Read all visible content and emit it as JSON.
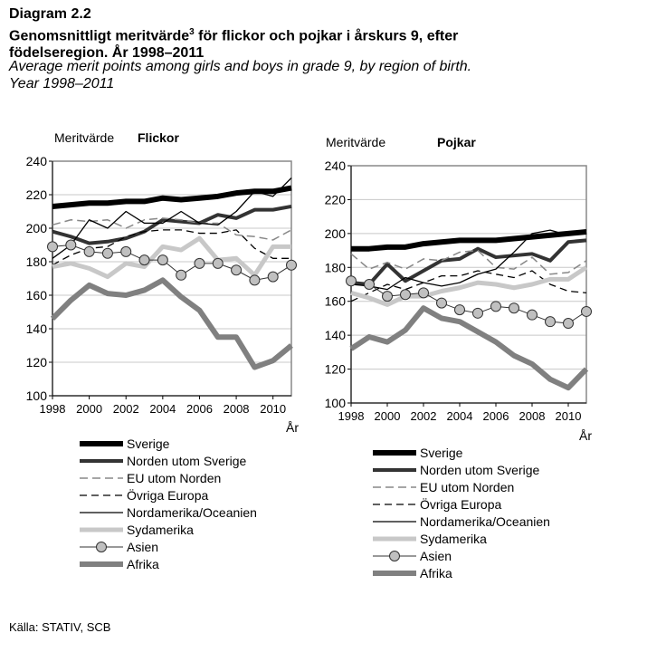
{
  "header": {
    "diagram": "Diagram 2.2",
    "title_a": "Genomsnittligt meritvärde",
    "title_sup": "3",
    "title_b": " för flickor och pojkar i årskurs 9, efter",
    "title_c": "födelseregion. År 1998–2011",
    "subtitle_a": "Average merit points among girls and boys in grade 9, by region of birth.",
    "subtitle_b": "Year 1998–2011"
  },
  "source": "Källa: STATIV, SCB",
  "chart_data": [
    {
      "type": "line",
      "title": "Flickor",
      "ylabel": "Meritvärde",
      "xlabel": "År",
      "ylim": [
        100,
        240
      ],
      "yticks": [
        100,
        120,
        140,
        160,
        180,
        200,
        220,
        240
      ],
      "xticks": [
        1998,
        2000,
        2002,
        2004,
        2006,
        2008,
        2010
      ],
      "grid": true,
      "legend_placement": "bottom",
      "x": [
        1998,
        1999,
        2000,
        2001,
        2002,
        2003,
        2004,
        2005,
        2006,
        2007,
        2008,
        2009,
        2010,
        2011
      ],
      "series": [
        {
          "name": "Sverige",
          "values": [
            213,
            214,
            215,
            215,
            216,
            216,
            218,
            217,
            218,
            219,
            221,
            222,
            222,
            224
          ]
        },
        {
          "name": "Norden utom Sverige",
          "values": [
            198,
            195,
            191,
            192,
            194,
            198,
            205,
            204,
            203,
            208,
            206,
            211,
            211,
            213
          ]
        },
        {
          "name": "EU utom Norden",
          "values": [
            202,
            205,
            204,
            205,
            200,
            205,
            206,
            205,
            203,
            203,
            196,
            195,
            193,
            199
          ]
        },
        {
          "name": "Övriga Europa",
          "values": [
            178,
            184,
            188,
            189,
            195,
            198,
            199,
            199,
            197,
            197,
            199,
            188,
            182,
            182
          ]
        },
        {
          "name": "Nordamerika/Oceanien",
          "values": [
            182,
            190,
            205,
            200,
            210,
            203,
            203,
            210,
            203,
            202,
            210,
            222,
            219,
            230
          ]
        },
        {
          "name": "Sydamerika",
          "values": [
            177,
            179,
            176,
            171,
            179,
            177,
            189,
            187,
            194,
            181,
            182,
            172,
            189,
            189
          ]
        },
        {
          "name": "Asien",
          "values": [
            189,
            190,
            186,
            185,
            186,
            181,
            181,
            172,
            179,
            179,
            175,
            169,
            171,
            178
          ]
        },
        {
          "name": "Afrika",
          "values": [
            146,
            157,
            166,
            161,
            160,
            163,
            169,
            159,
            151,
            135,
            135,
            117,
            121,
            130
          ]
        }
      ]
    },
    {
      "type": "line",
      "title": "Pojkar",
      "ylabel": "Meritvärde",
      "xlabel": "År",
      "ylim": [
        100,
        240
      ],
      "yticks": [
        100,
        120,
        140,
        160,
        180,
        200,
        220,
        240
      ],
      "xticks": [
        1998,
        2000,
        2002,
        2004,
        2006,
        2008,
        2010
      ],
      "grid": true,
      "legend_placement": "bottom",
      "x": [
        1998,
        1999,
        2000,
        2001,
        2002,
        2003,
        2004,
        2005,
        2006,
        2007,
        2008,
        2009,
        2010,
        2011
      ],
      "series": [
        {
          "name": "Sverige",
          "values": [
            191,
            191,
            192,
            192,
            194,
            195,
            196,
            196,
            196,
            197,
            198,
            199,
            200,
            201
          ]
        },
        {
          "name": "Norden utom Sverige",
          "values": [
            171,
            170,
            182,
            172,
            178,
            184,
            185,
            191,
            186,
            187,
            188,
            184,
            195,
            196
          ]
        },
        {
          "name": "EU utom Norden",
          "values": [
            188,
            179,
            183,
            179,
            185,
            184,
            189,
            190,
            180,
            179,
            186,
            176,
            177,
            184
          ]
        },
        {
          "name": "Övriga Europa",
          "values": [
            160,
            165,
            170,
            167,
            171,
            175,
            175,
            178,
            176,
            174,
            178,
            170,
            166,
            165
          ]
        },
        {
          "name": "Nordamerika/Oceanien",
          "values": [
            170,
            169,
            167,
            174,
            171,
            169,
            171,
            176,
            179,
            189,
            200,
            202,
            199,
            202
          ]
        },
        {
          "name": "Sydamerika",
          "values": [
            165,
            162,
            158,
            163,
            163,
            166,
            168,
            171,
            170,
            168,
            170,
            173,
            173,
            180
          ]
        },
        {
          "name": "Asien",
          "values": [
            172,
            170,
            163,
            164,
            165,
            159,
            155,
            153,
            157,
            156,
            152,
            148,
            147,
            154
          ]
        },
        {
          "name": "Afrika",
          "values": [
            132,
            139,
            136,
            143,
            156,
            150,
            148,
            142,
            136,
            128,
            123,
            114,
            109,
            120
          ]
        }
      ]
    }
  ],
  "styles": [
    {
      "color": "#000000",
      "width": 6,
      "dash": ""
    },
    {
      "color": "#333333",
      "width": 4,
      "dash": ""
    },
    {
      "color": "#888888",
      "width": 1.5,
      "dash": "9,5"
    },
    {
      "color": "#000000",
      "width": 1.3,
      "dash": "8,5"
    },
    {
      "color": "#000000",
      "width": 1.3,
      "dash": ""
    },
    {
      "color": "#c8c8c8",
      "width": 5,
      "dash": ""
    },
    {
      "color": "#333333",
      "width": 1,
      "dash": "",
      "marker": "circle",
      "marker_fill": "#c0c0c0"
    },
    {
      "color": "#808080",
      "width": 6,
      "dash": ""
    }
  ]
}
